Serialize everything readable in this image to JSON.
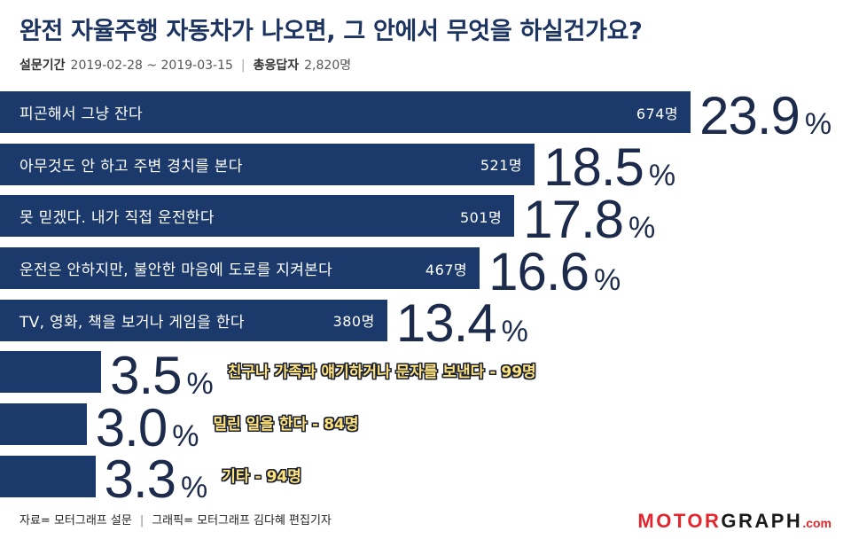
{
  "chart_data": {
    "type": "bar",
    "orientation": "horizontal",
    "title": "완전 자율주행 자동차가 나오면, 그 안에서 무엇을 하실건가요?",
    "subtitle": {
      "period_label": "설문기간",
      "period": "2019-02-28 ~ 2019-03-15",
      "separator": "|",
      "respondents_label": "총응답자",
      "respondents": "2,820명"
    },
    "categories": [
      "피곤해서 그냥 잔다",
      "아무것도 안 하고 주변 경치를 본다",
      "못 믿겠다. 내가 직접 운전한다",
      "운전은 안하지만, 불안한 마음에 도로를 지켜본다",
      "TV, 영화, 책을 보거나 게임을 한다",
      "친구나 가족과 얘기하거나 문자를 보낸다",
      "밀린 일을 한다",
      "기타"
    ],
    "counts": [
      "674명",
      "521명",
      "501명",
      "467명",
      "380명",
      "99명",
      "84명",
      "94명"
    ],
    "values": [
      23.9,
      18.5,
      17.8,
      16.6,
      13.4,
      3.5,
      3.0,
      3.3
    ],
    "value_suffix": "%",
    "count_separator": "-",
    "grid": false,
    "legend": "none"
  },
  "footer": {
    "source": "자료= 모터그래프 설문",
    "separator": "|",
    "credit": "그래픽= 모터그래프 김다혜 편집기자"
  },
  "logo": {
    "part1": "MOTOR",
    "part2": "GRAPH",
    "part3": ".com"
  },
  "theme": {
    "bar": "#1b3a6b",
    "value_text": "#1c2b4b",
    "title_text": "#1d3461",
    "outside_label": "#ffe27a",
    "outside_label_outline": "#1b2236",
    "logo_red": "#e1262d",
    "logo_dark": "#1a1a1a"
  }
}
